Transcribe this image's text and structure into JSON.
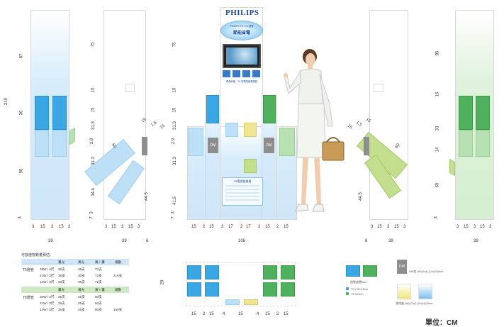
{
  "brand": {
    "name": "PHILIPS",
    "slogan_line1": "PHILIPS T5 / T8 燈管",
    "slogan_line2": "節能省電",
    "shelf_caption": "T5電燈管規格",
    "poster_caption": "環保節能，T5 省電換裝更輕鬆"
  },
  "dimensions": {
    "left_height": [
      "210",
      "87",
      "30",
      "90",
      "3"
    ],
    "panel2_vertical": [
      "75",
      "10",
      "15",
      "31.3",
      "2.9",
      "31.3",
      "34.4",
      "3",
      "7"
    ],
    "diag_left": [
      "60",
      "15",
      "1.5",
      "15"
    ],
    "diag_left_side": "44.5",
    "center_vertical": [
      "75",
      "10",
      "15",
      "31.3",
      "2.9",
      "31.3",
      "41.5",
      "3",
      "7"
    ],
    "diag_right": [
      "15",
      "1.5",
      "15",
      "60"
    ],
    "diag_right_side": "44.5",
    "right_vertical": [
      "85",
      "15",
      "33",
      "14",
      "60",
      "3"
    ],
    "bottom_left": [
      "3",
      "15",
      "3",
      "15",
      "3"
    ],
    "bottom_left_total": "39",
    "bottom_panel2": [
      "3",
      "15",
      "3",
      "15",
      "3"
    ],
    "bottom_panel2_total": "39",
    "bottom_panel2_side": "6",
    "bottom_center": [
      "15",
      "2",
      "15",
      "3",
      "17",
      "2",
      "17",
      "3",
      "15",
      "2",
      "15"
    ],
    "bottom_center_total": "106",
    "bottom_right_side": "6",
    "bottom_right2": [
      "3",
      "15",
      "3",
      "15",
      "3"
    ],
    "bottom_right2_total": "39",
    "bottom_far_right": [
      "3",
      "15",
      "3",
      "15",
      "3"
    ],
    "bottom_far_right_total": "39",
    "plan_height": "29",
    "plan_bottom": [
      "15",
      "2",
      "15",
      "4",
      "15",
      "4",
      "15",
      "2",
      "15"
    ]
  },
  "dm_label": "DM",
  "tube_label": "T5燈管 28W",
  "table": {
    "title": "可放燈管數量預估：",
    "headers_t5": [
      "",
      "畫光",
      "黃光",
      "黃＋畫",
      "總數"
    ],
    "rows_t5": [
      [
        "T5燈管",
        "28W / 4尺",
        "36支",
        "36支",
        "72支",
        ""
      ],
      [
        "",
        "21W / 3尺",
        "36支",
        "36支",
        "72支",
        "216支"
      ],
      [
        "",
        "14W / 2尺",
        "36支",
        "36支",
        "72支",
        ""
      ]
    ],
    "headers_t8": [
      "",
      "畫光",
      "黃光",
      "黃＋畫",
      "總數"
    ],
    "rows_t8": [
      [
        "T8燈管",
        "28W / 4尺",
        "25支",
        "25支",
        "50支",
        ""
      ],
      [
        "",
        "21W / 3尺",
        "25支",
        "25支",
        "50支",
        ""
      ],
      [
        "",
        "14W / 2尺",
        "25支",
        "25支",
        "50支",
        "150支"
      ]
    ]
  },
  "legend": {
    "tube_holder": "燈管放置5cm",
    "t5_size": "T5 2.5x2.5cm",
    "t8_size": "T8 3x3cm",
    "dm_rack": "DM架 (W)11x(L)14x(H)5cm",
    "test_box": "測試器 (W)17x(L)11x(H)20cm"
  },
  "unit_label": "單位：CM"
}
